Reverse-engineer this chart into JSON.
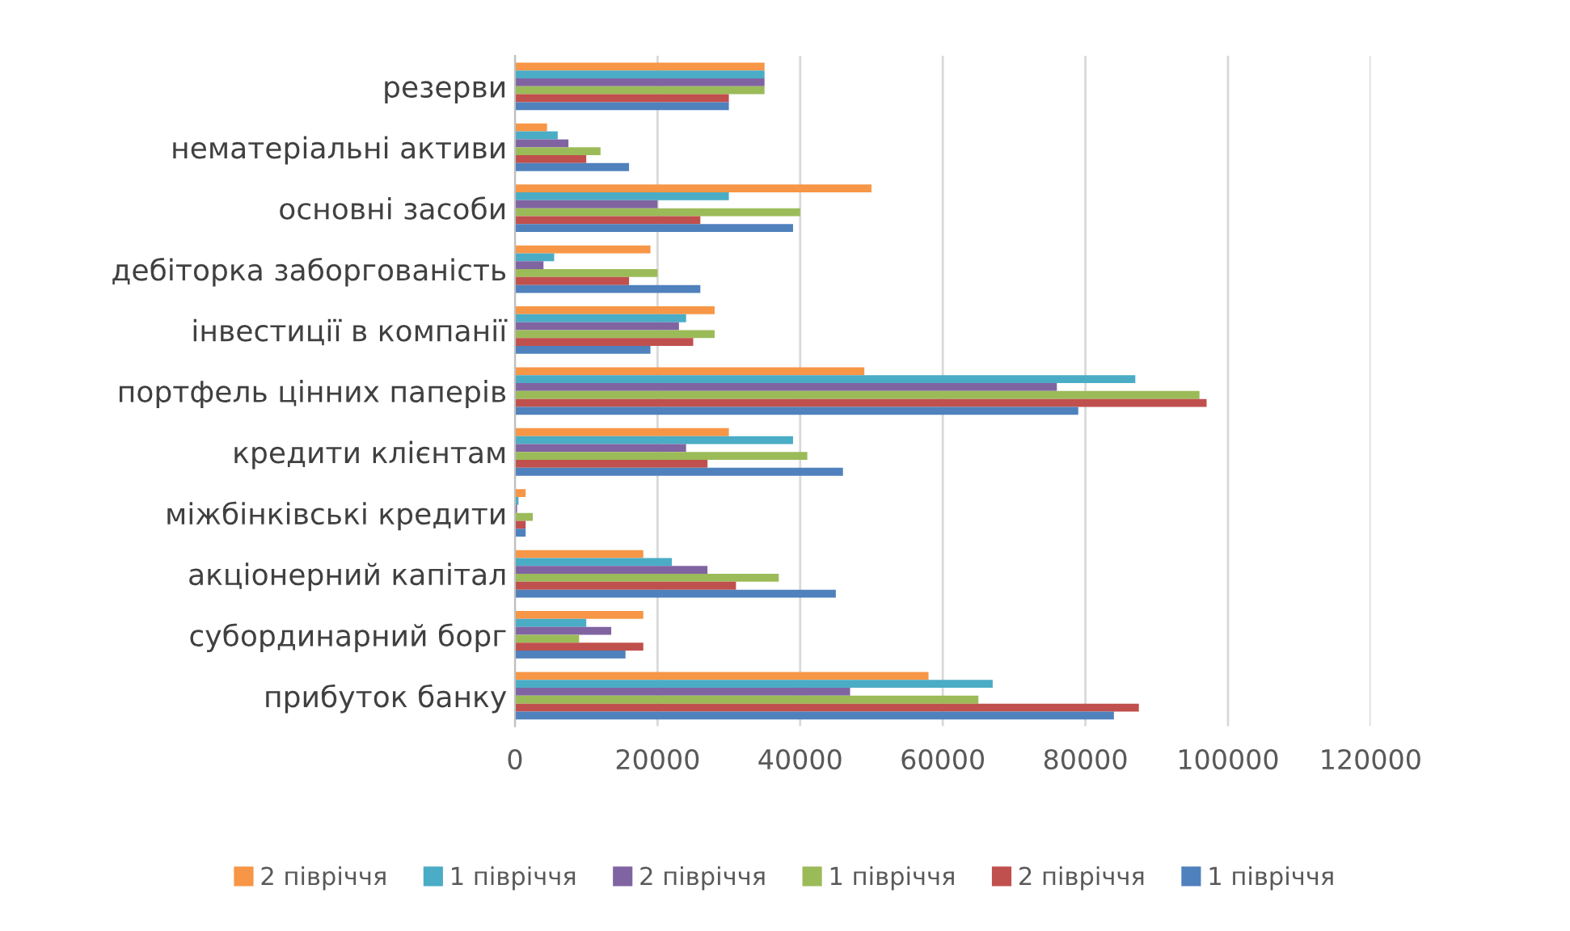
{
  "chart_data": {
    "type": "bar",
    "orientation": "horizontal",
    "categories": [
      "резерви",
      "нематеріальні активи",
      "основні засоби",
      "дебіторка заборгованість",
      "інвестиції в компанії",
      "портфель цінних паперів",
      "кредити клієнтам",
      "міжбінківські кредити",
      "акціонерний капітал",
      "субординарний борг",
      "прибуток банку"
    ],
    "series": [
      {
        "name": "2 півріччя",
        "color": "#f79646",
        "values": [
          35000,
          4500,
          50000,
          19000,
          28000,
          49000,
          30000,
          1500,
          18000,
          18000,
          58000
        ]
      },
      {
        "name": "1 півріччя",
        "color": "#4bacc6",
        "values": [
          35000,
          6000,
          30000,
          5500,
          24000,
          87000,
          39000,
          500,
          22000,
          10000,
          67000
        ]
      },
      {
        "name": "2 півріччя",
        "color": "#8064a2",
        "values": [
          35000,
          7500,
          20000,
          4000,
          23000,
          76000,
          24000,
          300,
          27000,
          13500,
          47000
        ]
      },
      {
        "name": "1 півріччя",
        "color": "#9bbb59",
        "values": [
          35000,
          12000,
          40000,
          20000,
          28000,
          96000,
          41000,
          2500,
          37000,
          9000,
          65000
        ]
      },
      {
        "name": "2 півріччя",
        "color": "#c0504d",
        "values": [
          30000,
          10000,
          26000,
          16000,
          25000,
          97000,
          27000,
          1500,
          31000,
          18000,
          87500
        ]
      },
      {
        "name": "1 півріччя",
        "color": "#4f81bd",
        "values": [
          30000,
          16000,
          39000,
          26000,
          19000,
          79000,
          46000,
          1500,
          45000,
          15500,
          84000
        ]
      }
    ],
    "xlim": [
      0,
      120000
    ],
    "xticks": [
      0,
      20000,
      40000,
      60000,
      80000,
      100000,
      120000
    ],
    "grid": "x",
    "legend": "bottom"
  }
}
